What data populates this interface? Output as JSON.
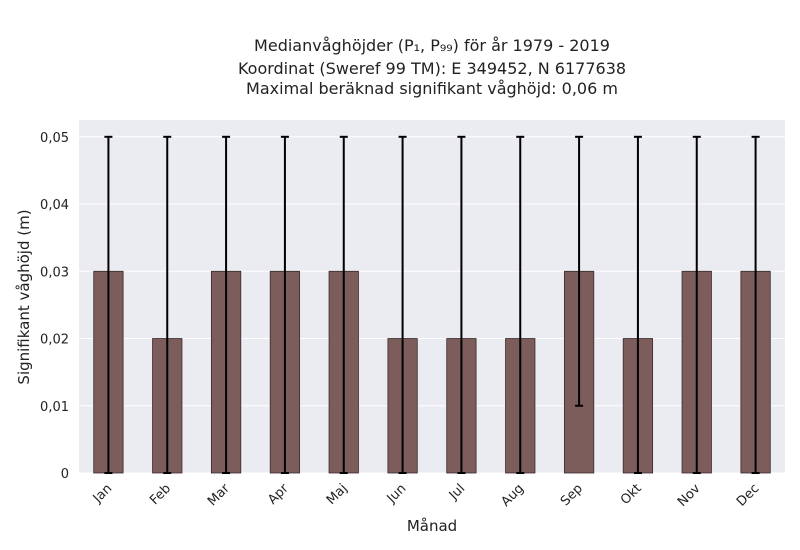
{
  "chart_data": {
    "type": "bar",
    "title_lines": [
      "Medianvåghöjder (P₁, P₉₉) för år 1979 - 2019",
      "Koordinat (Sweref 99 TM): E 349452, N 6177638",
      "Maximal beräknad signifikant våghöjd: 0,06 m"
    ],
    "xlabel": "Månad",
    "ylabel": "Signifikant våghöjd (m)",
    "categories": [
      "Jan",
      "Feb",
      "Mar",
      "Apr",
      "Maj",
      "Jun",
      "Jul",
      "Aug",
      "Sep",
      "Okt",
      "Nov",
      "Dec"
    ],
    "values": [
      0.03,
      0.02,
      0.03,
      0.03,
      0.03,
      0.02,
      0.02,
      0.02,
      0.03,
      0.02,
      0.03,
      0.03
    ],
    "error_low": [
      0,
      0,
      0,
      0,
      0,
      0,
      0,
      0,
      0.01,
      0,
      0,
      0
    ],
    "error_high": [
      0.05,
      0.05,
      0.05,
      0.05,
      0.05,
      0.05,
      0.05,
      0.05,
      0.05,
      0.05,
      0.05,
      0.05
    ],
    "ylim": [
      0,
      0.0525
    ],
    "yticks": [
      0,
      0.01,
      0.02,
      0.03,
      0.04,
      0.05
    ],
    "ytick_labels": [
      "0",
      "0,01",
      "0,02",
      "0,03",
      "0,04",
      "0,05"
    ],
    "grid": true,
    "colors": {
      "bar": "#7d5c5c",
      "bar_edge": "#3a2a2a",
      "error": "#000000",
      "plot_bg": "#ebebf2",
      "grid": "#ffffff"
    }
  }
}
